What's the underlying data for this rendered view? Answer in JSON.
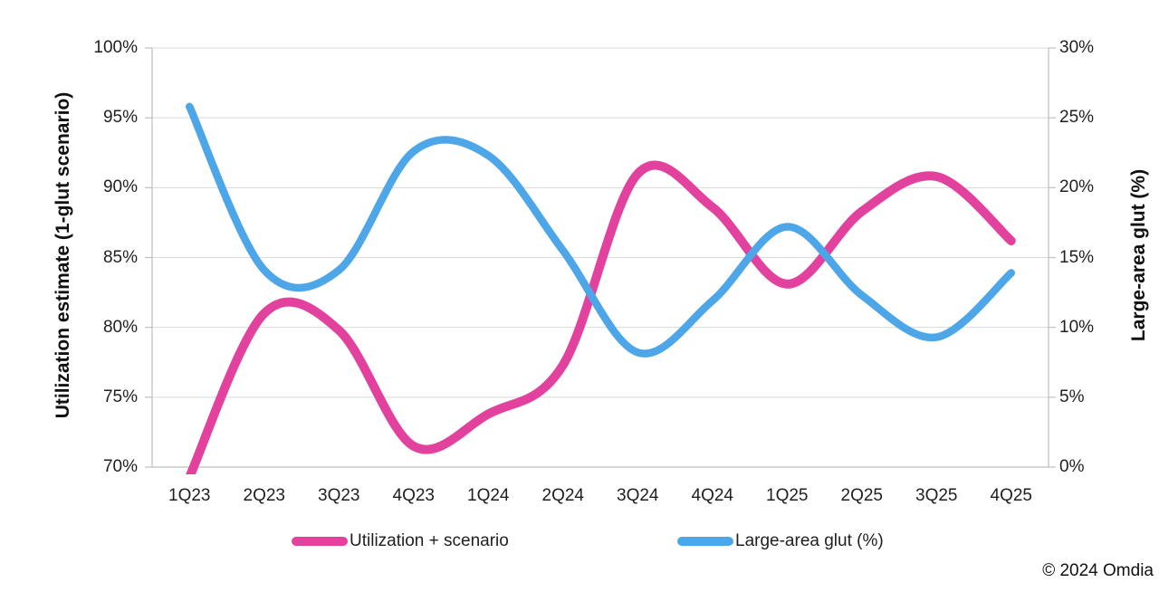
{
  "chart_data": {
    "type": "line",
    "smooth": true,
    "grid": true,
    "legend_position": "bottom",
    "categories": [
      "1Q23",
      "2Q23",
      "3Q23",
      "4Q23",
      "1Q24",
      "2Q24",
      "3Q24",
      "4Q24",
      "1Q25",
      "2Q25",
      "3Q25",
      "4Q25"
    ],
    "series": [
      {
        "name": "Utilization + scenario",
        "axis": "left",
        "color": "#E2419D",
        "stroke_width": 10,
        "values": [
          69.3,
          81.0,
          79.8,
          71.5,
          73.8,
          77.3,
          91.0,
          88.6,
          83.1,
          88.3,
          90.8,
          86.2
        ]
      },
      {
        "name": "Large-area glut (%)",
        "axis": "right",
        "color": "#4DA6E8",
        "stroke_width": 8.5,
        "values": [
          25.8,
          14.1,
          14.1,
          22.6,
          22.3,
          15.5,
          8.2,
          11.9,
          17.2,
          12.3,
          9.3,
          13.9
        ]
      }
    ],
    "left_axis": {
      "title": "Utilization estimate (1-glut scenario)",
      "min": 70,
      "max": 100,
      "step": 5,
      "tick_labels": [
        "100%",
        "95%",
        "90%",
        "85%",
        "80%",
        "75%",
        "70%"
      ]
    },
    "right_axis": {
      "title": "Large-area glut (%)",
      "min": 0,
      "max": 30,
      "step": 5,
      "tick_labels": [
        "30%",
        "25%",
        "20%",
        "15%",
        "10%",
        "5%",
        "0%"
      ]
    }
  },
  "footer": {
    "copyright": "© 2024 Omdia"
  },
  "colors": {
    "background": "#FFFFFF",
    "grid": "#D9D9D9",
    "axis": "#BFBFBF",
    "text": "#1F1F1F"
  }
}
